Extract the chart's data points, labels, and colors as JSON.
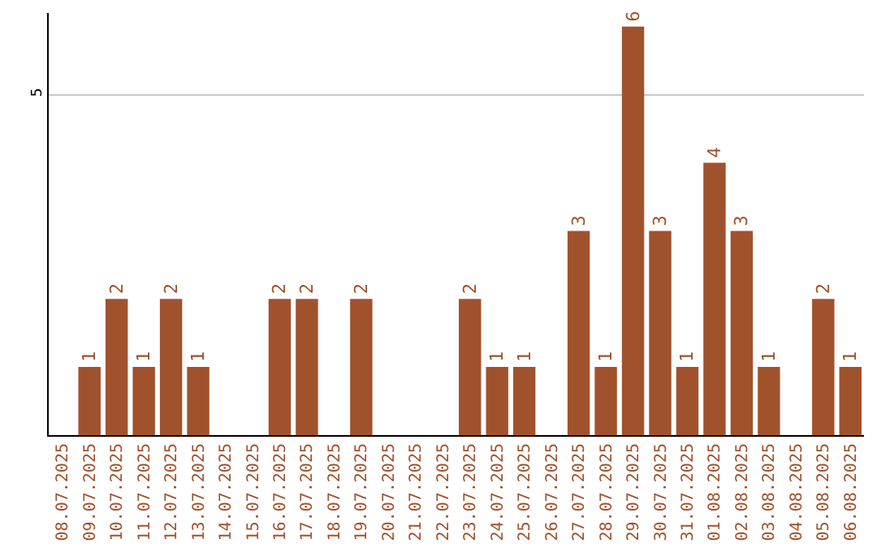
{
  "chart_data": {
    "type": "bar",
    "categories": [
      "08.07.2025",
      "09.07.2025",
      "10.07.2025",
      "11.07.2025",
      "12.07.2025",
      "13.07.2025",
      "14.07.2025",
      "15.07.2025",
      "16.07.2025",
      "17.07.2025",
      "18.07.2025",
      "19.07.2025",
      "20.07.2025",
      "21.07.2025",
      "22.07.2025",
      "23.07.2025",
      "24.07.2025",
      "25.07.2025",
      "26.07.2025",
      "27.07.2025",
      "28.07.2025",
      "29.07.2025",
      "30.07.2025",
      "31.07.2025",
      "01.08.2025",
      "02.08.2025",
      "03.08.2025",
      "04.08.2025",
      "05.08.2025",
      "06.08.2025"
    ],
    "values": [
      0,
      1,
      2,
      1,
      2,
      1,
      0,
      0,
      2,
      2,
      0,
      2,
      0,
      0,
      0,
      2,
      1,
      1,
      0,
      3,
      1,
      6,
      3,
      1,
      4,
      3,
      1,
      0,
      2,
      1
    ],
    "value_labels": [
      null,
      "1",
      "2",
      "1",
      "2",
      "1",
      null,
      null,
      "2",
      "2",
      null,
      "2",
      null,
      null,
      null,
      "2",
      "1",
      "1",
      null,
      "3",
      "1",
      "6",
      "3",
      "1",
      "4",
      "3",
      "1",
      null,
      "2",
      "1"
    ],
    "color": "#a0522d",
    "ylim": [
      0,
      6.2
    ],
    "yticks": [
      5
    ],
    "grid": "y"
  }
}
